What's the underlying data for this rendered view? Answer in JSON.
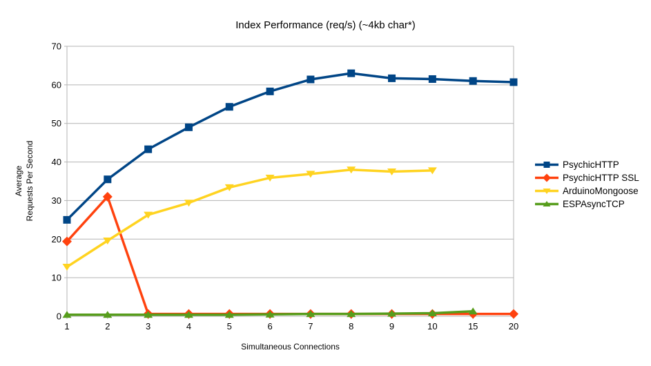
{
  "chart_data": {
    "type": "line",
    "title": "Index Performance (req/s) (~4kb char*)",
    "xlabel": "Simultaneous Connections",
    "ylabel": "Average\nRequests Per Second",
    "categories": [
      "1",
      "2",
      "3",
      "4",
      "5",
      "6",
      "7",
      "8",
      "9",
      "10",
      "15",
      "20"
    ],
    "ylim": [
      0,
      70
    ],
    "ytick_step": 10,
    "grid": "horizontal",
    "legend_position": "right",
    "axis_color": "#b3b3b3",
    "text_color": "#000000",
    "series": [
      {
        "name": "PsychicHTTP",
        "color": "#004586",
        "marker": "square",
        "values": [
          25,
          35.5,
          43.3,
          49,
          54.3,
          58.3,
          61.4,
          63,
          61.7,
          61.5,
          61,
          60.7
        ]
      },
      {
        "name": "PsychicHTTP SSL",
        "color": "#ff420e",
        "marker": "diamond",
        "values": [
          19.4,
          31,
          0.6,
          0.6,
          0.6,
          0.6,
          0.6,
          0.6,
          0.6,
          0.6,
          0.6,
          0.6
        ]
      },
      {
        "name": "ArduinoMongoose",
        "color": "#ffd320",
        "marker": "triangle-down",
        "values": [
          12.8,
          19.6,
          26.3,
          29.4,
          33.4,
          35.9,
          36.9,
          38,
          37.5,
          37.8
        ]
      },
      {
        "name": "ESPAsyncTCP",
        "color": "#579d1c",
        "marker": "triangle-up",
        "values": [
          0.4,
          0.4,
          0.4,
          0.4,
          0.4,
          0.5,
          0.6,
          0.6,
          0.7,
          0.8,
          1.3
        ]
      }
    ]
  }
}
